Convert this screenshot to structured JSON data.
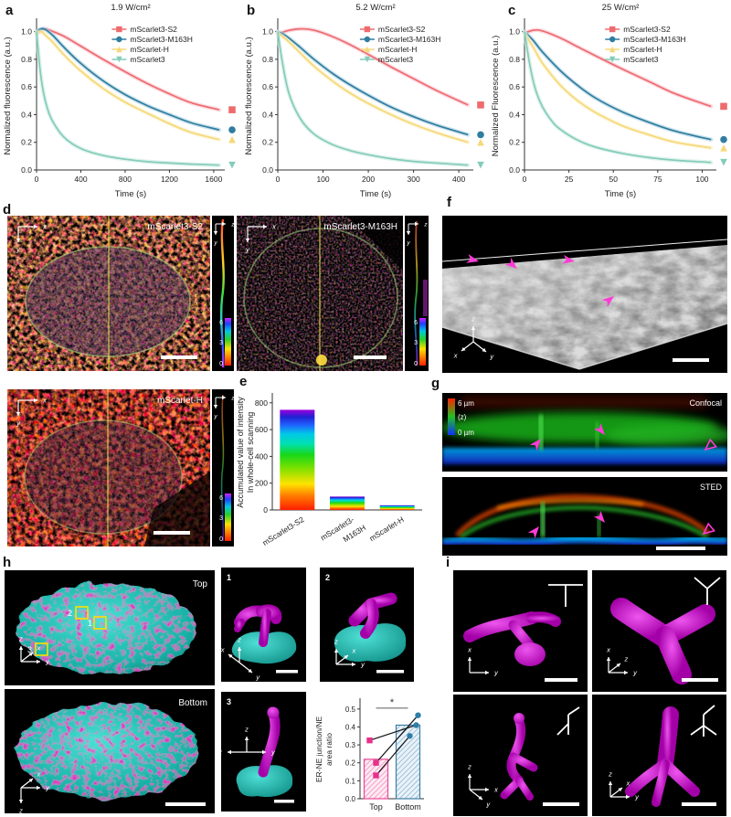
{
  "panel_letters": {
    "a": "a",
    "b": "b",
    "c": "c",
    "d": "d",
    "e": "e",
    "f": "f",
    "g": "g",
    "h": "h",
    "i": "i"
  },
  "axis_letters": {
    "x": "x",
    "y": "y",
    "z": "z"
  },
  "panel_d": {
    "images": [
      {
        "label": "mScarlet3-S2"
      },
      {
        "label": "mScarlet3-M163H"
      },
      {
        "label": "mScarlet-H"
      }
    ],
    "colorbar_labels": [
      "6",
      "3",
      "0"
    ]
  },
  "panel_g": {
    "labels": [
      "Confocal",
      "STED"
    ],
    "zscale": {
      "top": "6 µm",
      "mid": "(z)",
      "bottom": "0 µm"
    }
  },
  "panel_h": {
    "view_labels": [
      "Top",
      "Bottom"
    ],
    "roi_labels": [
      "2",
      "1",
      "3"
    ],
    "inset_labels": [
      "1",
      "2",
      "3"
    ]
  },
  "chart_data": [
    {
      "id": "a",
      "type": "line",
      "title": "1.9 W/cm²",
      "xlabel": "Time (s)",
      "ylabel": "Normalized fluorescence (a.u.)",
      "xlim": [
        0,
        1700
      ],
      "ylim": [
        0,
        1.07
      ],
      "xticks": [
        0,
        400,
        800,
        1200,
        1600
      ],
      "yticks": [
        0.0,
        0.2,
        0.4,
        0.6,
        0.8,
        1.0
      ],
      "legend_dx": 0.4,
      "legend_position": "top-right",
      "grid": false,
      "series": [
        {
          "name": "mScarlet3-S2",
          "color": "#ee6b6e",
          "band": "#f8c0cb",
          "marker": "square",
          "x": [
            0,
            40,
            80,
            150,
            250,
            400,
            600,
            800,
            1000,
            1200,
            1400,
            1650
          ],
          "y": [
            0.98,
            1.01,
            1.02,
            1.0,
            0.965,
            0.895,
            0.8,
            0.71,
            0.625,
            0.55,
            0.485,
            0.435
          ]
        },
        {
          "name": "mScarlet3-M163H",
          "color": "#2f7d9f",
          "band": "#a9cfe0",
          "marker": "circle",
          "x": [
            0,
            40,
            80,
            150,
            250,
            400,
            600,
            800,
            1000,
            1200,
            1400,
            1650
          ],
          "y": [
            1.0,
            1.02,
            1.015,
            0.97,
            0.885,
            0.77,
            0.645,
            0.545,
            0.465,
            0.4,
            0.34,
            0.29
          ]
        },
        {
          "name": "mScarlet-H",
          "color": "#f5d878",
          "band": "#fbeec0",
          "marker": "triangle",
          "x": [
            0,
            40,
            80,
            150,
            250,
            400,
            600,
            800,
            1000,
            1200,
            1400,
            1650
          ],
          "y": [
            0.99,
            1.0,
            0.975,
            0.92,
            0.83,
            0.715,
            0.59,
            0.49,
            0.41,
            0.335,
            0.27,
            0.22
          ]
        },
        {
          "name": "mScarlet3",
          "color": "#84ccba",
          "band": "#c9e9e0",
          "marker": "triangle-down",
          "x": [
            0,
            30,
            60,
            100,
            150,
            250,
            400,
            600,
            800,
            1000,
            1200,
            1400,
            1650
          ],
          "y": [
            1.0,
            0.74,
            0.57,
            0.44,
            0.345,
            0.235,
            0.155,
            0.105,
            0.078,
            0.06,
            0.05,
            0.042,
            0.035
          ]
        }
      ]
    },
    {
      "id": "b",
      "type": "line",
      "title": "5.2 W/cm²",
      "xlabel": "Time (s)",
      "ylabel": "Normalized fluorescence (a.u.)",
      "xlim": [
        0,
        432
      ],
      "ylim": [
        0,
        1.07
      ],
      "xticks": [
        0,
        100,
        200,
        300,
        400
      ],
      "yticks": [
        0.0,
        0.2,
        0.4,
        0.6,
        0.8,
        1.0
      ],
      "legend_dx": 0.42,
      "legend_position": "top-right",
      "grid": false,
      "series": [
        {
          "name": "mScarlet3-S2",
          "color": "#ee6b6e",
          "band": "#f8c0cb",
          "marker": "square",
          "x": [
            0,
            20,
            50,
            80,
            120,
            160,
            200,
            250,
            300,
            350,
            420
          ],
          "y": [
            0.98,
            1.005,
            1.02,
            1.01,
            0.965,
            0.905,
            0.835,
            0.745,
            0.66,
            0.575,
            0.47
          ]
        },
        {
          "name": "mScarlet3-M163H",
          "color": "#2f7d9f",
          "band": "#a9cfe0",
          "marker": "circle",
          "x": [
            0,
            20,
            50,
            80,
            120,
            160,
            200,
            250,
            300,
            350,
            420
          ],
          "y": [
            1.0,
            0.965,
            0.885,
            0.8,
            0.7,
            0.615,
            0.54,
            0.455,
            0.385,
            0.325,
            0.255
          ]
        },
        {
          "name": "mScarlet-H",
          "color": "#f5d878",
          "band": "#fbeec0",
          "marker": "triangle",
          "x": [
            0,
            20,
            50,
            80,
            120,
            160,
            200,
            250,
            300,
            350,
            420
          ],
          "y": [
            0.99,
            0.94,
            0.845,
            0.75,
            0.645,
            0.555,
            0.48,
            0.4,
            0.33,
            0.27,
            0.2
          ]
        },
        {
          "name": "mScarlet3",
          "color": "#84ccba",
          "band": "#c9e9e0",
          "marker": "triangle-down",
          "x": [
            0,
            10,
            25,
            50,
            80,
            120,
            160,
            200,
            250,
            300,
            350,
            420
          ],
          "y": [
            1.0,
            0.78,
            0.55,
            0.37,
            0.26,
            0.185,
            0.14,
            0.11,
            0.082,
            0.062,
            0.05,
            0.035
          ]
        }
      ]
    },
    {
      "id": "c",
      "type": "line",
      "title": "25 W/cm²",
      "xlabel": "Time (s)",
      "ylabel": "Normalized Fluorescence (a.u.)",
      "xlim": [
        0,
        108
      ],
      "ylim": [
        0,
        1.07
      ],
      "xticks": [
        0,
        25,
        50,
        75,
        100
      ],
      "yticks": [
        0.0,
        0.2,
        0.4,
        0.6,
        0.8,
        1.0
      ],
      "legend_dx": 0.42,
      "legend_position": "top-right",
      "grid": false,
      "series": [
        {
          "name": "mScarlet3-S2",
          "color": "#ee6b6e",
          "band": "#f8c0cb",
          "marker": "square",
          "x": [
            0,
            5,
            10,
            20,
            30,
            40,
            55,
            70,
            85,
            105
          ],
          "y": [
            0.99,
            1.01,
            1.005,
            0.955,
            0.89,
            0.825,
            0.73,
            0.64,
            0.55,
            0.46
          ]
        },
        {
          "name": "mScarlet3-M163H",
          "color": "#2f7d9f",
          "band": "#a9cfe0",
          "marker": "circle",
          "x": [
            0,
            5,
            10,
            20,
            30,
            40,
            55,
            70,
            85,
            105
          ],
          "y": [
            1.0,
            0.935,
            0.855,
            0.72,
            0.61,
            0.52,
            0.42,
            0.345,
            0.28,
            0.22
          ]
        },
        {
          "name": "mScarlet-H",
          "color": "#f5d878",
          "band": "#fbeec0",
          "marker": "triangle",
          "x": [
            0,
            5,
            10,
            20,
            30,
            40,
            55,
            70,
            85,
            105
          ],
          "y": [
            0.99,
            0.885,
            0.775,
            0.615,
            0.5,
            0.415,
            0.32,
            0.255,
            0.2,
            0.16
          ]
        },
        {
          "name": "mScarlet3",
          "color": "#84ccba",
          "band": "#c9e9e0",
          "marker": "triangle-down",
          "x": [
            0,
            3,
            6,
            10,
            15,
            20,
            30,
            40,
            55,
            70,
            85,
            105
          ],
          "y": [
            1.0,
            0.76,
            0.59,
            0.46,
            0.36,
            0.295,
            0.215,
            0.165,
            0.12,
            0.09,
            0.07,
            0.055
          ]
        }
      ]
    },
    {
      "id": "e",
      "type": "bar",
      "ylabel_lines": [
        "Accumulated value of intensity",
        "In whole-cell scanning"
      ],
      "categories": [
        [
          "mScarlet3-S2"
        ],
        [
          "mScarlet3-",
          "M163H"
        ],
        [
          "mScarlet-H"
        ]
      ],
      "values": [
        748,
        100,
        35
      ],
      "yticks": [
        0,
        200,
        400,
        600,
        800
      ],
      "ylim": [
        0,
        860
      ],
      "bar_style": "rainbow-gradient",
      "grid": false
    },
    {
      "id": "h_ratio",
      "type": "bar+paired-points",
      "ylabel_lines": [
        "ER-NE junction/NE",
        "area ratio"
      ],
      "categories": [
        "Top",
        "Bottom"
      ],
      "bar_values": [
        0.22,
        0.41
      ],
      "points_top": [
        0.325,
        0.2,
        0.13
      ],
      "points_bottom": [
        0.41,
        0.465,
        0.35
      ],
      "pairs": [
        [
          0.325,
          0.41
        ],
        [
          0.2,
          0.465
        ],
        [
          0.13,
          0.35
        ]
      ],
      "yticks": [
        0.0,
        0.1,
        0.2,
        0.3,
        0.4,
        0.5
      ],
      "ylim": [
        0,
        0.55
      ],
      "significance": "*",
      "colors": {
        "bar_top_fill": "#fdeaf3",
        "bar_top_hatch": "#f27fb4",
        "bar_top_stroke": "#e84a96",
        "bar_bottom_fill": "#eaf2f8",
        "bar_bottom_hatch": "#7fb0cc",
        "bar_bottom_stroke": "#3c7ea6",
        "point_top": "#e8308c",
        "point_bottom": "#2d7fa8",
        "sig": "#8a8a8a"
      }
    }
  ]
}
